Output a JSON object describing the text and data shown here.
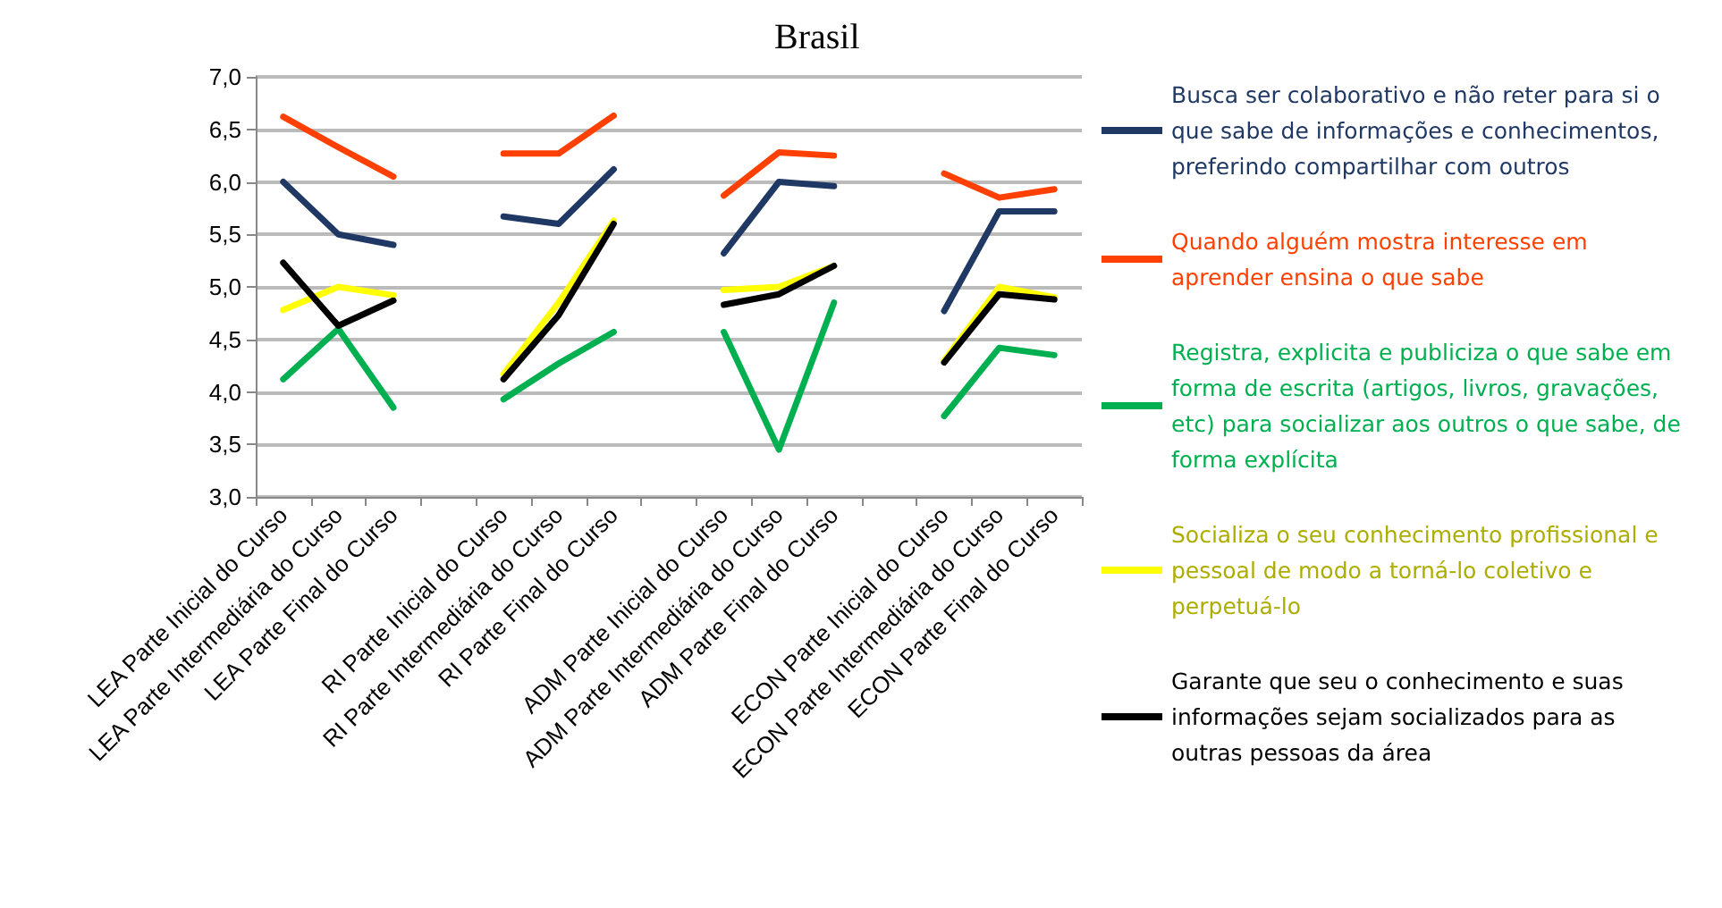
{
  "chart_data": {
    "type": "line",
    "title": "Brasil",
    "categories": [
      "LEA Parte Inicial do Curso",
      "LEA Parte Intermediária do Curso",
      "LEA Parte Final do Curso",
      null,
      "RI Parte Inicial do Curso",
      "RI Parte Intermediária do Curso",
      "RI Parte Final do Curso",
      null,
      "ADM Parte Inicial do Curso",
      "ADM Parte Intermediária do Curso",
      "ADM Parte Final do Curso",
      null,
      "ECON Parte Inicial do Curso",
      "ECON Parte Intermediária do Curso",
      "ECON Parte Final do Curso"
    ],
    "series": [
      {
        "name": "Busca ser colaborativo e não reter para si o que sabe de informações e conhecimentos, preferindo compartilhar com outros",
        "color": "#1f3864",
        "values": [
          6.0,
          5.5,
          5.4,
          null,
          5.67,
          5.6,
          6.12,
          null,
          5.32,
          6.0,
          5.96,
          null,
          4.77,
          5.72,
          5.72
        ]
      },
      {
        "name": "Quando alguém mostra interesse em aprender ensina o que sabe",
        "color": "#ff4000",
        "values": [
          6.62,
          6.33,
          6.05,
          null,
          6.27,
          6.27,
          6.63,
          null,
          5.87,
          6.28,
          6.25,
          null,
          6.08,
          5.85,
          5.93
        ]
      },
      {
        "name": "Registra, explicita e publiciza o que sabe em forma de escrita (artigos, livros, gravações, etc) para socializar aos outros o que sabe, de forma explícita",
        "color": "#00b050",
        "values": [
          4.12,
          4.6,
          3.85,
          null,
          3.93,
          4.27,
          4.57,
          null,
          4.57,
          3.45,
          4.85,
          null,
          3.77,
          4.42,
          4.35
        ]
      },
      {
        "name": "Socializa o seu conhecimento profissional e pessoal de modo a torná-lo coletivo e perpetuá-lo",
        "color": "#ffff00",
        "values": [
          4.78,
          5.0,
          4.92,
          null,
          4.17,
          4.85,
          5.63,
          null,
          4.97,
          5.0,
          5.2,
          null,
          4.3,
          5.0,
          4.9
        ]
      },
      {
        "name": "Garante que seu o conhecimento e suas informações sejam socializados para as outras pessoas da área",
        "color": "#000000",
        "values": [
          5.23,
          4.63,
          4.87,
          null,
          4.12,
          4.73,
          5.6,
          null,
          4.83,
          4.93,
          5.2,
          null,
          4.28,
          4.93,
          4.88
        ]
      }
    ],
    "ylim": [
      3.0,
      7.0
    ],
    "yticks": [
      {
        "value": 3,
        "label": "3,0"
      },
      {
        "value": 3.5,
        "label": "3,5"
      },
      {
        "value": 4,
        "label": "4,0"
      },
      {
        "value": 4.5,
        "label": "4,5"
      },
      {
        "value": 5,
        "label": "5,0"
      },
      {
        "value": 5.5,
        "label": "5,5"
      },
      {
        "value": 6,
        "label": "6,0"
      },
      {
        "value": 6.5,
        "label": "6,5"
      },
      {
        "value": 7,
        "label": "7,0"
      }
    ],
    "grid": "y",
    "legend": "right",
    "marker": "none",
    "line_style": "solid"
  }
}
